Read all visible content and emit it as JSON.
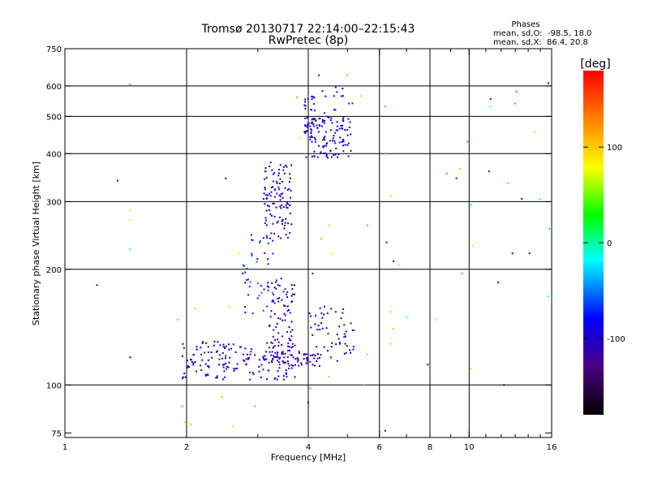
{
  "chart_data": {
    "type": "scatter",
    "title": "Tromsø 20130717 22:14:00–22:15:43",
    "subtitle": "RwPretec (8p)",
    "xlabel": "Frequency [MHz]",
    "ylabel": "Stationary phase Virtual Height [km]",
    "x_scale": "log",
    "y_scale": "log",
    "xlim": [
      1,
      16
    ],
    "ylim": [
      73,
      750
    ],
    "x_ticks": [
      1,
      2,
      4,
      6,
      8,
      10,
      16
    ],
    "x_tick_labels": [
      "1",
      "2",
      "4",
      "6",
      "8",
      "10",
      "16"
    ],
    "x_minor_ticks": [
      3,
      5,
      7,
      9,
      11,
      12,
      13,
      14,
      15
    ],
    "y_ticks": [
      75,
      100,
      200,
      300,
      400,
      500,
      600,
      750
    ],
    "y_tick_labels": [
      "75",
      "100",
      "200",
      "300",
      "400",
      "500",
      "600",
      "750"
    ],
    "grid_x": [
      2,
      4,
      6,
      8,
      10
    ],
    "grid_y": [
      100,
      200,
      300,
      400,
      500,
      600
    ],
    "grid": true,
    "stats": {
      "title": "Phases",
      "line1": "mean, sd,O:  -98.5, 18.0",
      "line2": "mean, sd,X:  86.4, 20.8"
    },
    "colorbar": {
      "label": "[deg]",
      "min": -180,
      "max": 180,
      "ticks": [
        100,
        0,
        -100
      ],
      "tick_labels": [
        "100",
        "0",
        "-100"
      ]
    },
    "marker_color_scale": [
      "#000000",
      "#4b0082",
      "#0000ff",
      "#00ffff",
      "#00ff00",
      "#ffff00",
      "#ff8000",
      "#ff0000"
    ],
    "clusters": [
      {
        "x": [
          1.95,
          3.8
        ],
        "y": [
          103,
          130
        ],
        "n": 160,
        "phase": [
          -110,
          -88
        ]
      },
      {
        "x": [
          3.0,
          4.3
        ],
        "y": [
          112,
          122
        ],
        "n": 70,
        "phase": [
          -120,
          -95
        ]
      },
      {
        "x": [
          4.0,
          5.2
        ],
        "y": [
          115,
          160
        ],
        "n": 55,
        "phase": [
          -110,
          -80
        ]
      },
      {
        "x": [
          3.2,
          3.7
        ],
        "y": [
          125,
          190
        ],
        "n": 70,
        "phase": [
          -125,
          -95
        ]
      },
      {
        "x": [
          3.1,
          3.65
        ],
        "y": [
          240,
          380
        ],
        "n": 110,
        "phase": [
          -115,
          -90
        ]
      },
      {
        "x": [
          2.75,
          3.3
        ],
        "y": [
          150,
          250
        ],
        "n": 45,
        "phase": [
          -100,
          -50
        ]
      },
      {
        "x": [
          3.95,
          5.1
        ],
        "y": [
          390,
          500
        ],
        "n": 110,
        "phase": [
          -115,
          -85
        ]
      },
      {
        "x": [
          3.9,
          4.15
        ],
        "y": [
          440,
          570
        ],
        "n": 35,
        "phase": [
          -105,
          -85
        ]
      },
      {
        "x": [
          4.3,
          5.2
        ],
        "y": [
          480,
          600
        ],
        "n": 18,
        "phase": [
          -100,
          -70
        ]
      }
    ],
    "points": [
      {
        "x": 1.45,
        "y": 605,
        "phase": 140
      },
      {
        "x": 1.35,
        "y": 340,
        "phase": -100
      },
      {
        "x": 1.45,
        "y": 285,
        "phase": 100
      },
      {
        "x": 1.45,
        "y": 268,
        "phase": 90
      },
      {
        "x": 1.45,
        "y": 225,
        "phase": -20
      },
      {
        "x": 1.2,
        "y": 182,
        "phase": -110
      },
      {
        "x": 1.45,
        "y": 118,
        "phase": -95
      },
      {
        "x": 1.9,
        "y": 148,
        "phase": 120
      },
      {
        "x": 1.95,
        "y": 88,
        "phase": 130
      },
      {
        "x": 1.98,
        "y": 80,
        "phase": 100
      },
      {
        "x": 2.05,
        "y": 79,
        "phase": 110
      },
      {
        "x": 2.6,
        "y": 78,
        "phase": 95
      },
      {
        "x": 2.1,
        "y": 158,
        "phase": 105
      },
      {
        "x": 2.5,
        "y": 345,
        "phase": -100
      },
      {
        "x": 2.7,
        "y": 220,
        "phase": 90
      },
      {
        "x": 2.55,
        "y": 160,
        "phase": 100
      },
      {
        "x": 2.45,
        "y": 93,
        "phase": 110
      },
      {
        "x": 2.95,
        "y": 88,
        "phase": 120
      },
      {
        "x": 3.75,
        "y": 560,
        "phase": 120
      },
      {
        "x": 3.8,
        "y": 440,
        "phase": 100
      },
      {
        "x": 4.25,
        "y": 640,
        "phase": -110
      },
      {
        "x": 4.5,
        "y": 260,
        "phase": 100
      },
      {
        "x": 4.3,
        "y": 240,
        "phase": 40
      },
      {
        "x": 4.6,
        "y": 220,
        "phase": 90
      },
      {
        "x": 4.1,
        "y": 195,
        "phase": -100
      },
      {
        "x": 4.05,
        "y": 98,
        "phase": 20
      },
      {
        "x": 4.0,
        "y": 90,
        "phase": -100
      },
      {
        "x": 4.5,
        "y": 105,
        "phase": 110
      },
      {
        "x": 5.0,
        "y": 640,
        "phase": 120
      },
      {
        "x": 5.4,
        "y": 565,
        "phase": 95
      },
      {
        "x": 5.6,
        "y": 260,
        "phase": -30
      },
      {
        "x": 5.6,
        "y": 120,
        "phase": 110
      },
      {
        "x": 5.5,
        "y": 100,
        "phase": 120
      },
      {
        "x": 6.1,
        "y": 600,
        "phase": -40
      },
      {
        "x": 6.2,
        "y": 530,
        "phase": -30
      },
      {
        "x": 6.2,
        "y": 400,
        "phase": 130
      },
      {
        "x": 6.25,
        "y": 235,
        "phase": -100
      },
      {
        "x": 6.4,
        "y": 310,
        "phase": 100
      },
      {
        "x": 6.5,
        "y": 210,
        "phase": -100
      },
      {
        "x": 6.7,
        "y": 205,
        "phase": 95
      },
      {
        "x": 6.4,
        "y": 155,
        "phase": 100
      },
      {
        "x": 6.5,
        "y": 140,
        "phase": 110
      },
      {
        "x": 6.4,
        "y": 128,
        "phase": 100
      },
      {
        "x": 7.0,
        "y": 150,
        "phase": -20
      },
      {
        "x": 6.2,
        "y": 76,
        "phase": -100
      },
      {
        "x": 7.9,
        "y": 113,
        "phase": -100
      },
      {
        "x": 8.3,
        "y": 148,
        "phase": 100
      },
      {
        "x": 8.8,
        "y": 355,
        "phase": 140
      },
      {
        "x": 9.3,
        "y": 345,
        "phase": -100
      },
      {
        "x": 9.5,
        "y": 365,
        "phase": 100
      },
      {
        "x": 9.6,
        "y": 195,
        "phase": 130
      },
      {
        "x": 9.9,
        "y": 430,
        "phase": 140
      },
      {
        "x": 10.1,
        "y": 295,
        "phase": -20
      },
      {
        "x": 10.2,
        "y": 230,
        "phase": 95
      },
      {
        "x": 10.1,
        "y": 110,
        "phase": 100
      },
      {
        "x": 11.3,
        "y": 555,
        "phase": -100
      },
      {
        "x": 11.3,
        "y": 530,
        "phase": -10
      },
      {
        "x": 11.2,
        "y": 360,
        "phase": -100
      },
      {
        "x": 11.8,
        "y": 185,
        "phase": -100
      },
      {
        "x": 12.5,
        "y": 335,
        "phase": -20
      },
      {
        "x": 12.8,
        "y": 220,
        "phase": -100
      },
      {
        "x": 13.0,
        "y": 540,
        "phase": 140
      },
      {
        "x": 13.1,
        "y": 580,
        "phase": 150
      },
      {
        "x": 13.5,
        "y": 305,
        "phase": -100
      },
      {
        "x": 14.1,
        "y": 220,
        "phase": -110
      },
      {
        "x": 14.5,
        "y": 455,
        "phase": 100
      },
      {
        "x": 15.0,
        "y": 305,
        "phase": -10
      },
      {
        "x": 15.7,
        "y": 610,
        "phase": -100
      },
      {
        "x": 15.8,
        "y": 255,
        "phase": -30
      },
      {
        "x": 15.7,
        "y": 170,
        "phase": -20
      },
      {
        "x": 12.2,
        "y": 100,
        "phase": -100
      }
    ]
  }
}
